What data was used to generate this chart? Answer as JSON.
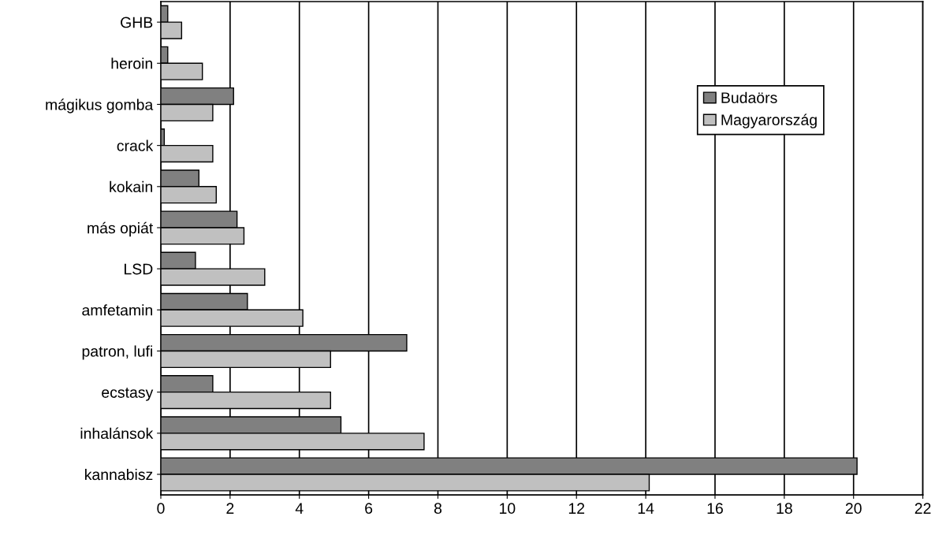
{
  "chart_data": {
    "type": "bar",
    "orientation": "horizontal",
    "categories": [
      "GHB",
      "heroin",
      "mágikus gomba",
      "crack",
      "kokain",
      "más opiát",
      "LSD",
      "amfetamin",
      "patron, lufi",
      "ecstasy",
      "inhalánsok",
      "kannabisz"
    ],
    "series": [
      {
        "name": "Budaörs",
        "color": "#808080",
        "values": [
          0.2,
          0.2,
          2.1,
          0.1,
          1.1,
          2.2,
          1.0,
          2.5,
          7.1,
          1.5,
          5.2,
          20.1
        ]
      },
      {
        "name": "Magyarország",
        "color": "#c0c0c0",
        "values": [
          0.6,
          1.2,
          1.5,
          1.5,
          1.6,
          2.4,
          3.0,
          4.1,
          4.9,
          4.9,
          7.6,
          14.1
        ]
      }
    ],
    "xlim": [
      0,
      22
    ],
    "xticks": [
      0,
      2,
      4,
      6,
      8,
      10,
      12,
      14,
      16,
      18,
      20,
      22
    ],
    "grid": "x",
    "legend": "right"
  }
}
